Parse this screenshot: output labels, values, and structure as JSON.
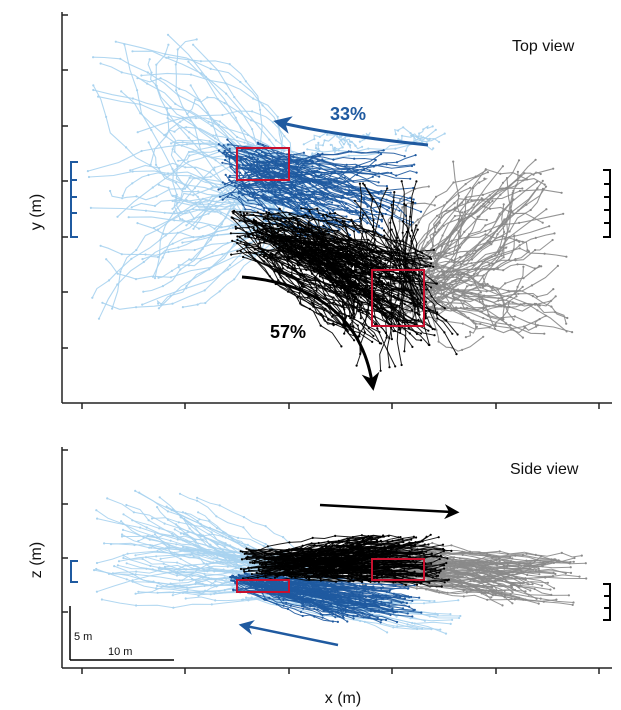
{
  "figure": {
    "x_axis_label": "x (m)",
    "colors": {
      "light_blue": "#a9d3ef",
      "blue": "#1f5aa0",
      "black": "#000000",
      "gray": "#8a8a8a",
      "red": "#c8102e"
    }
  },
  "chart_data": [
    {
      "type": "line",
      "panel": "top",
      "title": "Top view",
      "ylabel": "y (m)",
      "annotations": [
        {
          "text": "33%",
          "color": "#1f5aa0",
          "arrow_direction": "up-left"
        },
        {
          "text": "57%",
          "color": "#000000",
          "arrow_direction": "down"
        }
      ],
      "series_colors": [
        "#a9d3ef",
        "#1f5aa0",
        "#000000",
        "#8a8a8a"
      ],
      "regions": [
        "red-box-blue-cluster",
        "red-box-black-cluster"
      ]
    },
    {
      "type": "line",
      "panel": "bottom",
      "title": "Side view",
      "ylabel": "z (m)",
      "annotations": [
        {
          "text": "",
          "color": "#000000",
          "arrow_direction": "right"
        },
        {
          "text": "",
          "color": "#1f5aa0",
          "arrow_direction": "left"
        }
      ],
      "scale_bar": {
        "vertical": "5 m",
        "horizontal": "10 m"
      },
      "series_colors": [
        "#a9d3ef",
        "#1f5aa0",
        "#000000",
        "#8a8a8a"
      ],
      "regions": [
        "red-box-blue-cluster",
        "red-box-black-cluster"
      ]
    }
  ]
}
